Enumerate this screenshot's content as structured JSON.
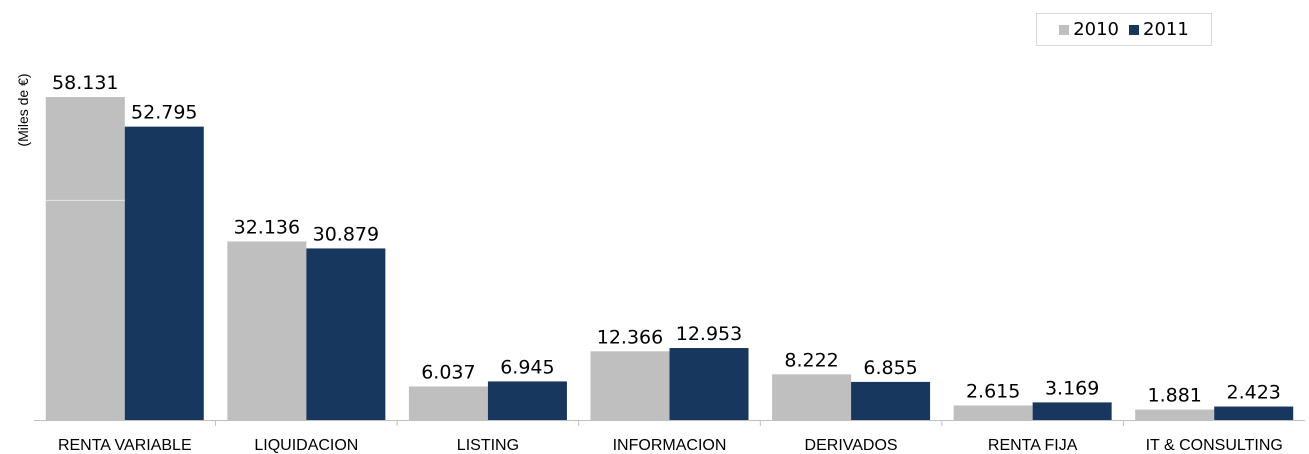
{
  "chart_data": {
    "type": "bar",
    "ylabel": "(Miles de €)",
    "categories": [
      "RENTA VARIABLE",
      "LIQUIDACION",
      "LISTING",
      "INFORMACION",
      "DERIVADOS",
      "RENTA FIJA",
      "IT & CONSULTING"
    ],
    "series": [
      {
        "name": "2010",
        "color": "#bfbfbf",
        "values": [
          58131,
          32136,
          6037,
          12366,
          8222,
          2615,
          1881
        ],
        "labels": [
          "58.131",
          "32.136",
          "6.037",
          "12.366",
          "8.222",
          "2.615",
          "1.881"
        ]
      },
      {
        "name": "2011",
        "color": "#17375e",
        "values": [
          52795,
          30879,
          6945,
          12953,
          6855,
          3169,
          2423
        ],
        "labels": [
          "52.795",
          "30.879",
          "6.945",
          "12.953",
          "6.855",
          "3.169",
          "2.423"
        ]
      }
    ],
    "ylim": [
      0,
      58131
    ],
    "grid": false,
    "legend_position": "top-right"
  }
}
